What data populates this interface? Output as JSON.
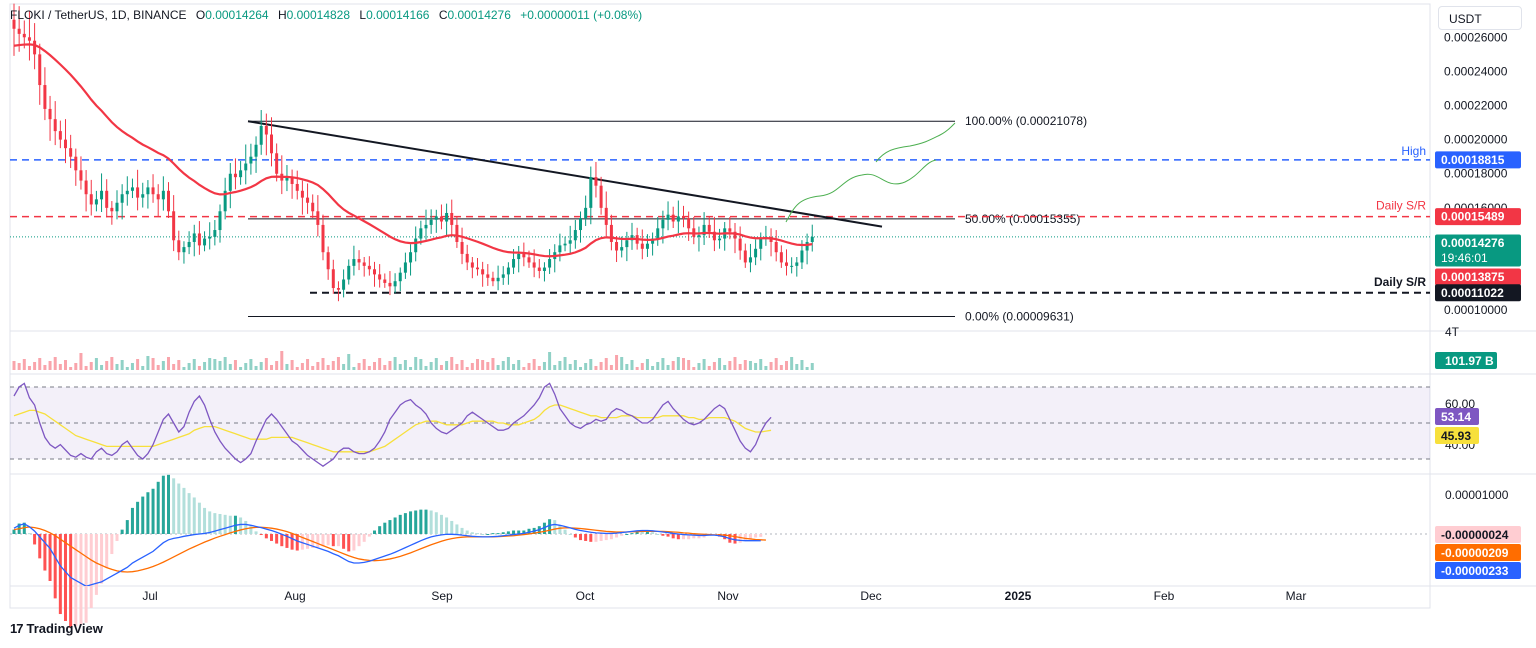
{
  "header": {
    "symbol": "FLOKI / TetherUS, 1D, BINANCE",
    "o_label": "O",
    "o": "0.00014264",
    "h_label": "H",
    "h": "0.00014828",
    "l_label": "L",
    "l": "0.00014166",
    "c_label": "C",
    "c": "0.00014276",
    "change": "+0.00000011 (+0.08%)"
  },
  "unit_button": "USDT",
  "branding": "TradingView",
  "colors": {
    "up": "#089981",
    "down": "#f23645",
    "ema": "#f23645",
    "hi_line": "#2962ff",
    "rsi": "#7e57c2",
    "rsi_ma": "#f7e03c",
    "macd": "#2962ff",
    "signal": "#ff6d00",
    "fib": "#131722",
    "projection": "#4caf50"
  },
  "chart_data": [
    {
      "type": "candlestick",
      "title": "FLOKI / TetherUS, 1D, BINANCE",
      "y_axis_ticks": [
        "0.00026000",
        "0.00024000",
        "0.00022000",
        "0.00020000",
        "0.00018000",
        "0.00016000",
        "0.00010000"
      ],
      "x_axis_ticks": [
        "Jul",
        "Aug",
        "Sep",
        "Oct",
        "Nov",
        "Dec",
        "2025",
        "Feb",
        "Mar"
      ],
      "ylim": [
        9.25e-05,
        0.000276
      ],
      "closes": [
        0.000265,
        0.000262,
        0.00026,
        0.000258,
        0.00025,
        0.000232,
        0.000218,
        0.000212,
        0.000205,
        0.0002,
        0.000195,
        0.00019,
        0.000182,
        0.000176,
        0.000168,
        0.000162,
        0.000165,
        0.00017,
        0.00016,
        0.000158,
        0.000163,
        0.000168,
        0.00017,
        0.000172,
        0.000166,
        0.000168,
        0.000172,
        0.000168,
        0.000165,
        0.00017,
        0.000158,
        0.000141,
        0.000134,
        0.000137,
        0.00014,
        0.000145,
        0.000138,
        0.000142,
        0.000143,
        0.000147,
        0.000158,
        0.00017,
        0.00018,
        0.000178,
        0.000182,
        0.000186,
        0.00019,
        0.000197,
        0.000208,
        0.000203,
        0.000192,
        0.00018,
        0.000176,
        0.000178,
        0.000174,
        0.00017,
        0.000166,
        0.000163,
        0.000158,
        0.00015,
        0.000134,
        0.000124,
        0.000113,
        0.000112,
        0.000118,
        0.000126,
        0.00013,
        0.000128,
        0.000126,
        0.000124,
        0.000121,
        0.000118,
        0.000116,
        0.000114,
        0.000117,
        0.000122,
        0.000128,
        0.000134,
        0.000142,
        0.000148,
        0.00015,
        0.000153,
        0.000155,
        0.000152,
        0.000157,
        0.00015,
        0.00014,
        0.000133,
        0.000128,
        0.000125,
        0.000124,
        0.000121,
        0.000119,
        0.000117,
        0.000119,
        0.000121,
        0.000125,
        0.00013,
        0.000133,
        0.000131,
        0.000128,
        0.000125,
        0.000123,
        0.000125,
        0.00013,
        0.000134,
        0.000138,
        0.000139,
        0.000141,
        0.000147,
        0.000154,
        0.00016,
        0.000178,
        0.000173,
        0.00016,
        0.00015,
        0.00014,
        0.000135,
        0.000137,
        0.000141,
        0.000144,
        0.000139,
        0.000136,
        0.000139,
        0.000142,
        0.000148,
        0.000153,
        0.000156,
        0.000152,
        0.000155,
        0.000154,
        0.000148,
        0.000143,
        0.000144,
        0.00015,
        0.000146,
        0.000141,
        0.000142,
        0.000148,
        0.000146,
        0.000142,
        0.000135,
        0.000128,
        0.000131,
        0.000136,
        0.000142,
        0.000143,
        0.00014,
        0.000134,
        0.000128,
        0.000126,
        0.000126,
        0.000128,
        0.000135,
        0.00014,
        0.000143
      ],
      "ema_period": 50,
      "ema_last": 0.00013875,
      "levels": [
        {
          "label": "100.00% (0.00021078)",
          "value": 0.00021078,
          "style": "solid-black"
        },
        {
          "label": "50.00% (0.00015355)",
          "value": 0.00015355,
          "style": "solid-black"
        },
        {
          "label": "0.00% (0.00009631)",
          "value": 9.631e-05,
          "style": "solid-black"
        },
        {
          "label": "High",
          "value": 0.00018815,
          "style": "dashed-blue"
        },
        {
          "label": "Daily S/R",
          "value": 0.00015489,
          "style": "dashed-red"
        },
        {
          "label": "Daily S/R",
          "value": 0.00011022,
          "style": "dashed-black"
        }
      ],
      "price_tags": [
        {
          "text": "0.00018815",
          "color": "#2962ff"
        },
        {
          "text": "0.00015489",
          "color": "#f23645"
        },
        {
          "text": "0.00014276",
          "sub": "19:46:01",
          "color": "#089981"
        },
        {
          "text": "0.00013875",
          "color": "#f23645"
        },
        {
          "text": "0.00011022",
          "color": "#131722"
        }
      ],
      "trendline": {
        "from": 0.00021078,
        "to": 0.000149
      }
    },
    {
      "type": "bar",
      "title": "Volume",
      "scale_label": "4T",
      "last_value": "101.97 B"
    },
    {
      "type": "line",
      "title": "RSI",
      "y_axis_ticks": [
        "60.00",
        "40.00"
      ],
      "upper_band": 70,
      "middle_band": 50,
      "lower_band": 30,
      "rsi_last": 53.14,
      "rsi_ma_last": 45.93,
      "rsi_values": [
        65,
        70,
        72,
        64,
        60,
        50,
        42,
        38,
        36,
        38,
        35,
        32,
        31,
        33,
        31,
        30,
        34,
        36,
        33,
        32,
        34,
        38,
        40,
        36,
        32,
        30,
        33,
        38,
        45,
        52,
        55,
        50,
        45,
        48,
        56,
        62,
        65,
        60,
        52,
        45,
        40,
        36,
        33,
        30,
        28,
        30,
        33,
        40,
        46,
        52,
        55,
        52,
        48,
        44,
        40,
        38,
        35,
        32,
        30,
        28,
        26,
        28,
        30,
        34,
        36,
        36,
        34,
        33,
        33,
        34,
        36,
        40,
        45,
        52,
        56,
        60,
        62,
        63,
        60,
        58,
        55,
        50,
        47,
        45,
        44,
        46,
        48,
        50,
        54,
        56,
        54,
        52,
        50,
        48,
        46,
        46,
        47,
        50,
        52,
        54,
        57,
        60,
        64,
        70,
        72,
        66,
        58,
        54,
        50,
        48,
        47,
        49,
        50,
        52,
        51,
        52,
        56,
        58,
        57,
        55,
        54,
        52,
        50,
        50,
        52,
        56,
        60,
        62,
        58,
        55,
        52,
        50,
        49,
        50,
        52,
        55,
        58,
        60,
        58,
        52,
        46,
        40,
        36,
        34,
        38,
        45,
        50,
        53.14
      ],
      "rsi_ma_values": [
        54,
        55,
        56,
        57,
        57,
        56,
        55,
        53,
        51,
        49,
        47,
        45,
        43,
        42,
        41,
        40,
        39,
        38,
        37,
        37,
        37,
        37,
        37,
        37,
        37,
        37,
        37,
        37,
        38,
        39,
        40,
        41,
        42,
        43,
        44,
        46,
        47,
        48,
        48,
        48,
        47,
        46,
        45,
        44,
        43,
        42,
        41,
        41,
        41,
        41,
        42,
        42,
        42,
        42,
        42,
        41,
        40,
        39,
        38,
        37,
        36,
        35,
        34,
        34,
        34,
        34,
        34,
        34,
        34,
        34,
        35,
        36,
        37,
        39,
        41,
        43,
        45,
        47,
        49,
        50,
        51,
        51,
        51,
        50,
        49,
        49,
        49,
        49,
        50,
        51,
        51,
        51,
        51,
        51,
        50,
        50,
        49,
        49,
        49,
        50,
        51,
        52,
        54,
        57,
        59,
        60,
        60,
        59,
        58,
        57,
        56,
        55,
        54,
        54,
        53,
        53,
        53,
        53,
        54,
        54,
        54,
        53,
        53,
        53,
        53,
        53,
        54,
        54,
        54,
        54,
        54,
        53,
        53,
        52,
        52,
        53,
        53,
        53,
        53,
        52,
        51,
        49,
        47,
        46,
        45,
        45,
        45.5,
        45.93
      ]
    },
    {
      "type": "line",
      "title": "MACD",
      "y_axis_ticks": [
        "0.00001000"
      ],
      "macd_last": "-0.00000233",
      "signal_last": "-0.00000209",
      "hist_last": "-0.00000024",
      "macd_values": [
        2e-06,
        3e-06,
        3.5e-06,
        2.5e-06,
        1e-06,
        -1e-06,
        -3e-06,
        -5e-06,
        -8e-06,
        -1.1e-05,
        -1.3e-05,
        -1.5e-05,
        -1.6e-05,
        -1.7e-05,
        -1.8e-05,
        -1.75e-05,
        -1.7e-05,
        -1.65e-05,
        -1.55e-05,
        -1.45e-05,
        -1.35e-05,
        -1.25e-05,
        -1.15e-05,
        -1e-05,
        -9e-06,
        -8e-06,
        -7e-06,
        -6e-06,
        -4.5e-06,
        -3e-06,
        -2e-06,
        -1.5e-06,
        -1.2e-06,
        -8e-07,
        -5e-07,
        -2e-07,
        0.0,
        2e-07,
        5e-07,
        1e-06,
        1.5e-06,
        2e-06,
        2.5e-06,
        3e-06,
        3.3e-06,
        3.3e-06,
        3e-06,
        2.6e-06,
        2.2e-06,
        1.7e-06,
        1.2e-06,
        6e-07,
        -1e-07,
        -8e-07,
        -1.6e-06,
        -2.4e-06,
        -3e-06,
        -3.6e-06,
        -4.2e-06,
        -4.8e-06,
        -5.4e-06,
        -6e-06,
        -6.8e-06,
        -7.5e-06,
        -8.5e-06,
        -9.5e-06,
        -1e-05,
        -1e-05,
        -9.8e-06,
        -9.4e-06,
        -8.8e-06,
        -8.2e-06,
        -7.6e-06,
        -7e-06,
        -6.3e-06,
        -5.5e-06,
        -4.7e-06,
        -3.9e-06,
        -3.1e-06,
        -2.3e-06,
        -1.6e-06,
        -1e-06,
        -6e-07,
        -3e-07,
        -1e-07,
        -1e-07,
        -2e-07,
        -4e-07,
        -6e-07,
        -8e-07,
        -9e-07,
        -1e-06,
        -1e-06,
        -9e-07,
        -8e-07,
        -6e-07,
        -4e-07,
        -2e-07,
        0.0,
        2e-07,
        6e-07,
        1e-06,
        1.5e-06,
        2.2e-06,
        3e-06,
        3.3e-06,
        3e-06,
        2.6e-06,
        2.1e-06,
        1.6e-06,
        1.2e-06,
        9e-07,
        6e-07,
        4e-07,
        3e-07,
        2e-07,
        2e-07,
        3e-07,
        5e-07,
        7e-07,
        9e-07,
        1.1e-06,
        1.2e-06,
        1.2e-06,
        1.1e-06,
        9e-07,
        7e-07,
        5e-07,
        2e-07,
        0.0,
        -2e-07,
        -3e-07,
        -4e-07,
        -5e-07,
        -5e-07,
        -4e-07,
        -4e-07,
        -6e-07,
        -1e-06,
        -1.6e-06,
        -2e-06,
        -2.2e-06,
        -2.3e-06,
        -2.3e-06,
        -2.3e-06,
        -2.33e-06
      ],
      "signal_values": [
        1.5e-06,
        1.8e-06,
        2.2e-06,
        2.4e-06,
        2.2e-06,
        1.8e-06,
        1.2e-06,
        4e-07,
        -6e-07,
        -1.8e-06,
        -3e-06,
        -4.2e-06,
        -5.4e-06,
        -6.6e-06,
        -7.8e-06,
        -9e-06,
        -1e-05,
        -1.08e-05,
        -1.16e-05,
        -1.22e-05,
        -1.27e-05,
        -1.3e-05,
        -1.31e-05,
        -1.3e-05,
        -1.27e-05,
        -1.23e-05,
        -1.18e-05,
        -1.12e-05,
        -1.05e-05,
        -9.7e-06,
        -8.8e-06,
        -7.9e-06,
        -7e-06,
        -6.1e-06,
        -5.2e-06,
        -4.4e-06,
        -3.6e-06,
        -2.8e-06,
        -2.1e-06,
        -1.4e-06,
        -8e-07,
        -2e-07,
        4e-07,
        9e-07,
        1.4e-06,
        1.8e-06,
        2.1e-06,
        2.3e-06,
        2.3e-06,
        2.2e-06,
        2e-06,
        1.7e-06,
        1.3e-06,
        8e-07,
        2e-07,
        -5e-07,
        -1.2e-06,
        -1.9e-06,
        -2.6e-06,
        -3.3e-06,
        -4e-06,
        -4.7e-06,
        -5.4e-06,
        -6.1e-06,
        -6.8e-06,
        -7.5e-06,
        -8.1e-06,
        -8.6e-06,
        -8.9e-06,
        -9.1e-06,
        -9.2e-06,
        -9.1e-06,
        -8.9e-06,
        -8.6e-06,
        -8.2e-06,
        -7.7e-06,
        -7.1e-06,
        -6.5e-06,
        -5.8e-06,
        -5.1e-06,
        -4.4e-06,
        -3.7e-06,
        -3.1e-06,
        -2.5e-06,
        -2e-06,
        -1.6e-06,
        -1.3e-06,
        -1.1e-06,
        -1e-06,
        -1e-06,
        -1e-06,
        -1e-06,
        -1e-06,
        -1e-06,
        -9e-07,
        -8e-07,
        -7e-07,
        -6e-07,
        -4e-07,
        -2e-07,
        0.0,
        3e-07,
        6e-07,
        9e-07,
        1.3e-06,
        1.7e-06,
        2e-06,
        2.1e-06,
        2.1e-06,
        2e-06,
        1.9e-06,
        1.7e-06,
        1.5e-06,
        1.3e-06,
        1.1e-06,
        9e-07,
        8e-07,
        7e-07,
        7e-07,
        7e-07,
        8e-07,
        8e-07,
        9e-07,
        9e-07,
        9e-07,
        9e-07,
        9e-07,
        8e-07,
        7e-07,
        6e-07,
        4e-07,
        3e-07,
        1e-07,
        0.0,
        -1e-07,
        -2e-07,
        -3e-07,
        -3e-07,
        -4e-07,
        -6e-07,
        -9e-07,
        -1.2e-06,
        -1.5e-06,
        -1.7e-06,
        -1.9e-06,
        -2e-06,
        -2.09e-06
      ]
    }
  ]
}
